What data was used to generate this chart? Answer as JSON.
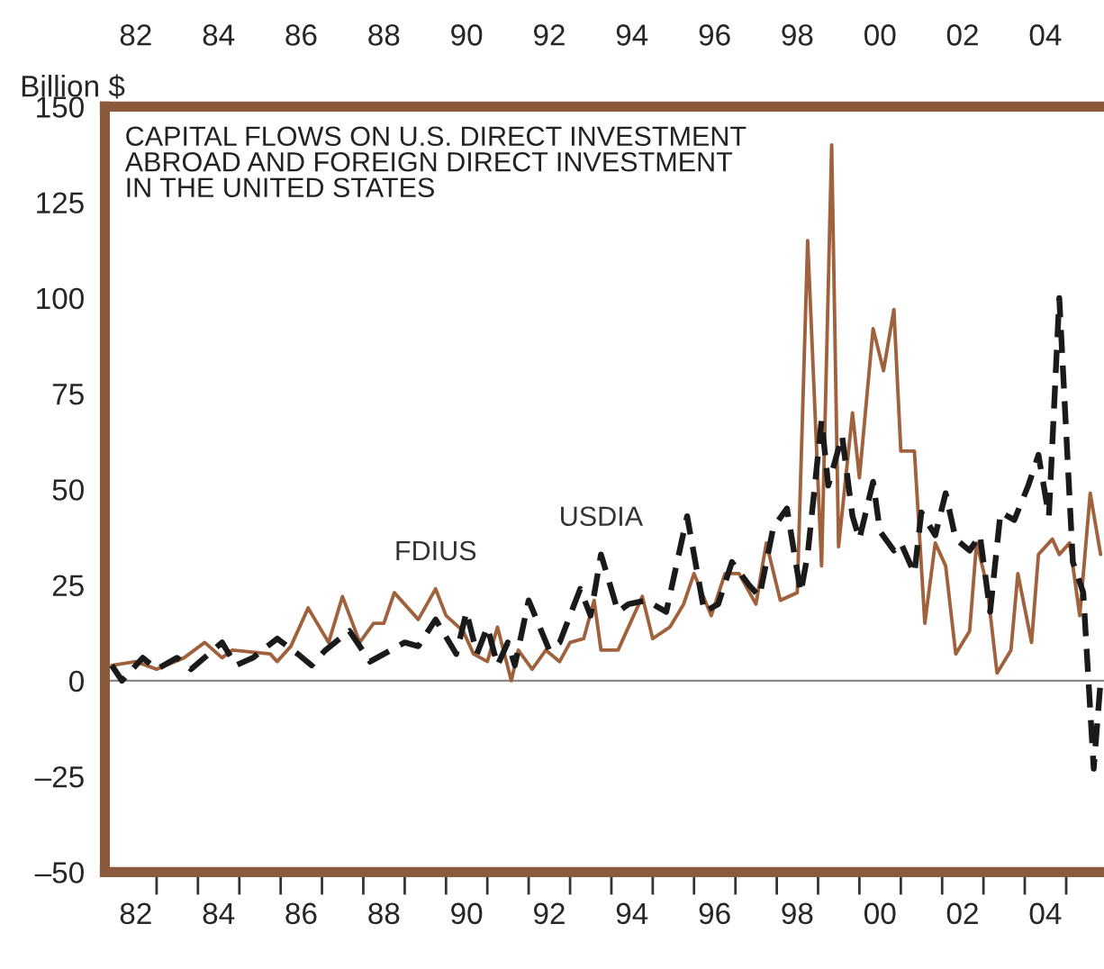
{
  "chart_data": {
    "type": "line",
    "title": "CAPITAL FLOWS ON U.S. DIRECT INVESTMENT\nABROAD AND FOREIGN DIRECT INVESTMENT\nIN THE UNITED STATES",
    "ylabel": "Billion $",
    "series": [
      {
        "name": "FDIUS",
        "color": "#a0623c",
        "line_style": "solid",
        "x": [
          "1981-12",
          "1982-07",
          "1983-01",
          "1983-09",
          "1984-03",
          "1984-08",
          "1984-11",
          "1985-10",
          "1985-12",
          "1986-04",
          "1986-09",
          "1987-03",
          "1987-07",
          "1987-12",
          "1988-04",
          "1988-07",
          "1988-10",
          "1989-05",
          "1989-10",
          "1990-01",
          "1990-06",
          "1990-09",
          "1991-01",
          "1991-04",
          "1991-08",
          "1991-10",
          "1992-02",
          "1992-06",
          "1992-10",
          "1993-01",
          "1993-05",
          "1993-08",
          "1993-10",
          "1994-03",
          "1994-10",
          "1995-01",
          "1995-06",
          "1995-10",
          "1996-01",
          "1996-06",
          "1996-10",
          "1997-02",
          "1997-07",
          "1997-10",
          "1998-02",
          "1998-07",
          "1998-10",
          "1999-02",
          "1999-05",
          "1999-07",
          "1999-11",
          "2000-01",
          "2000-05",
          "2000-08",
          "2000-11",
          "2001-01",
          "2001-05",
          "2001-08",
          "2001-11",
          "2002-02",
          "2002-05",
          "2002-09",
          "2002-11",
          "2003-02",
          "2003-05",
          "2003-09",
          "2003-11",
          "2004-03",
          "2004-05",
          "2004-09",
          "2004-11",
          "2005-02",
          "2005-05",
          "2005-08",
          "2005-11"
        ],
        "values": [
          4,
          5,
          3,
          6,
          10,
          6,
          8,
          7,
          5,
          9,
          19,
          10,
          22,
          10,
          15,
          15,
          23,
          16,
          24,
          17,
          13,
          7,
          5,
          14,
          0,
          8,
          3,
          8,
          5,
          10,
          11,
          21,
          8,
          8,
          22,
          11,
          14,
          20,
          28,
          17,
          28,
          28,
          20,
          36,
          21,
          23,
          115,
          30,
          140,
          35,
          70,
          53,
          92,
          81,
          97,
          60,
          60,
          15,
          36,
          30,
          7,
          13,
          36,
          25,
          2,
          8,
          28,
          10,
          33,
          37,
          33,
          36,
          17,
          49,
          33
        ]
      },
      {
        "name": "USDIA",
        "color": "#1a1a1a",
        "line_style": "dashed",
        "x": [
          "1981-12",
          "1982-03",
          "1982-09",
          "1983-01",
          "1983-07",
          "1983-11",
          "1984-08",
          "1984-12",
          "1985-05",
          "1985-12",
          "1986-06",
          "1986-10",
          "1987-02",
          "1987-09",
          "1988-03",
          "1988-09",
          "1989-01",
          "1989-05",
          "1989-10",
          "1990-04",
          "1990-07",
          "1990-10",
          "1991-01",
          "1991-04",
          "1991-07",
          "1991-09",
          "1992-01",
          "1992-07",
          "1992-10",
          "1993-04",
          "1993-07",
          "1993-10",
          "1994-03",
          "1994-06",
          "1994-11",
          "1995-05",
          "1995-11",
          "1996-04",
          "1996-08",
          "1996-12",
          "1997-05",
          "1997-08",
          "1997-12",
          "1998-04",
          "1998-08",
          "1998-10",
          "1999-02",
          "1999-04",
          "1999-08",
          "1999-11",
          "2000-01",
          "2000-05",
          "2000-07",
          "2000-11",
          "2001-01",
          "2001-05",
          "2001-07",
          "2001-11",
          "2002-02",
          "2002-05",
          "2002-09",
          "2002-12",
          "2003-03",
          "2003-06",
          "2003-10",
          "2004-02",
          "2004-05",
          "2004-08",
          "2004-11",
          "2005-03",
          "2005-06",
          "2005-09",
          "2005-11"
        ],
        "values": [
          4,
          0,
          6,
          3,
          6,
          3,
          10,
          4,
          6,
          11,
          7,
          4,
          8,
          13,
          5,
          8,
          10,
          9,
          16,
          7,
          18,
          7,
          14,
          4,
          10,
          4,
          21,
          8,
          10,
          24,
          17,
          33,
          18,
          20,
          21,
          18,
          43,
          18,
          20,
          31,
          25,
          22,
          40,
          45,
          23,
          33,
          68,
          51,
          64,
          43,
          37,
          52,
          39,
          34,
          36,
          28,
          44,
          38,
          49,
          37,
          34,
          38,
          18,
          44,
          42,
          51,
          59,
          43,
          100,
          31,
          23,
          -23,
          0
        ]
      }
    ],
    "xlim": [
      "1981-10",
      "2005-12"
    ],
    "xticks": [
      {
        "value": "1983-01",
        "label": null
      },
      {
        "value": "1984-01",
        "label": null
      },
      {
        "value": "1985-01",
        "label": null
      },
      {
        "value": "1986-01",
        "label": null
      },
      {
        "value": "1987-01",
        "label": null
      },
      {
        "value": "1988-01",
        "label": null
      },
      {
        "value": "1989-01",
        "label": null
      },
      {
        "value": "1990-01",
        "label": null
      },
      {
        "value": "1991-01",
        "label": null
      },
      {
        "value": "1992-01",
        "label": null
      },
      {
        "value": "1993-01",
        "label": null
      },
      {
        "value": "1994-01",
        "label": null
      },
      {
        "value": "1995-01",
        "label": null
      },
      {
        "value": "1996-01",
        "label": null
      },
      {
        "value": "1997-01",
        "label": null
      },
      {
        "value": "1998-01",
        "label": null
      },
      {
        "value": "1999-01",
        "label": null
      },
      {
        "value": "2000-01",
        "label": null
      },
      {
        "value": "2001-01",
        "label": null
      },
      {
        "value": "2002-01",
        "label": null
      },
      {
        "value": "2003-01",
        "label": null
      },
      {
        "value": "2004-01",
        "label": null
      },
      {
        "value": "2005-01",
        "label": null
      },
      {
        "value": "1982-07",
        "label": "82"
      },
      {
        "value": "1984-07",
        "label": "84"
      },
      {
        "value": "1986-07",
        "label": "86"
      },
      {
        "value": "1988-07",
        "label": "88"
      },
      {
        "value": "1990-07",
        "label": "90"
      },
      {
        "value": "1992-07",
        "label": "92"
      },
      {
        "value": "1994-07",
        "label": "94"
      },
      {
        "value": "1996-07",
        "label": "96"
      },
      {
        "value": "1998-07",
        "label": "98"
      },
      {
        "value": "2000-07",
        "label": "00"
      },
      {
        "value": "2002-07",
        "label": "02"
      },
      {
        "value": "2004-07",
        "label": "04"
      }
    ],
    "x2lim": [
      "1981-10",
      "2005-12"
    ],
    "x2ticks": [
      {
        "value": "1982-07",
        "label": "82"
      },
      {
        "value": "1984-07",
        "label": "84"
      },
      {
        "value": "1986-07",
        "label": "86"
      },
      {
        "value": "1988-07",
        "label": "88"
      },
      {
        "value": "1990-07",
        "label": "90"
      },
      {
        "value": "1992-07",
        "label": "92"
      },
      {
        "value": "1994-07",
        "label": "94"
      },
      {
        "value": "1996-07",
        "label": "96"
      },
      {
        "value": "1998-07",
        "label": "98"
      },
      {
        "value": "2000-07",
        "label": "00"
      },
      {
        "value": "2002-07",
        "label": "02"
      },
      {
        "value": "2004-07",
        "label": "04"
      }
    ],
    "ylim": [
      -50,
      150
    ],
    "yticks": [
      {
        "value": -50,
        "label": "–50"
      },
      {
        "value": -25,
        "label": "–25"
      },
      0,
      25,
      50,
      75,
      100,
      125,
      150
    ],
    "ref_lines": [
      {
        "axis": "y",
        "value": 0,
        "label": null,
        "color": "#888888"
      }
    ],
    "grid": false,
    "legend": false
  }
}
